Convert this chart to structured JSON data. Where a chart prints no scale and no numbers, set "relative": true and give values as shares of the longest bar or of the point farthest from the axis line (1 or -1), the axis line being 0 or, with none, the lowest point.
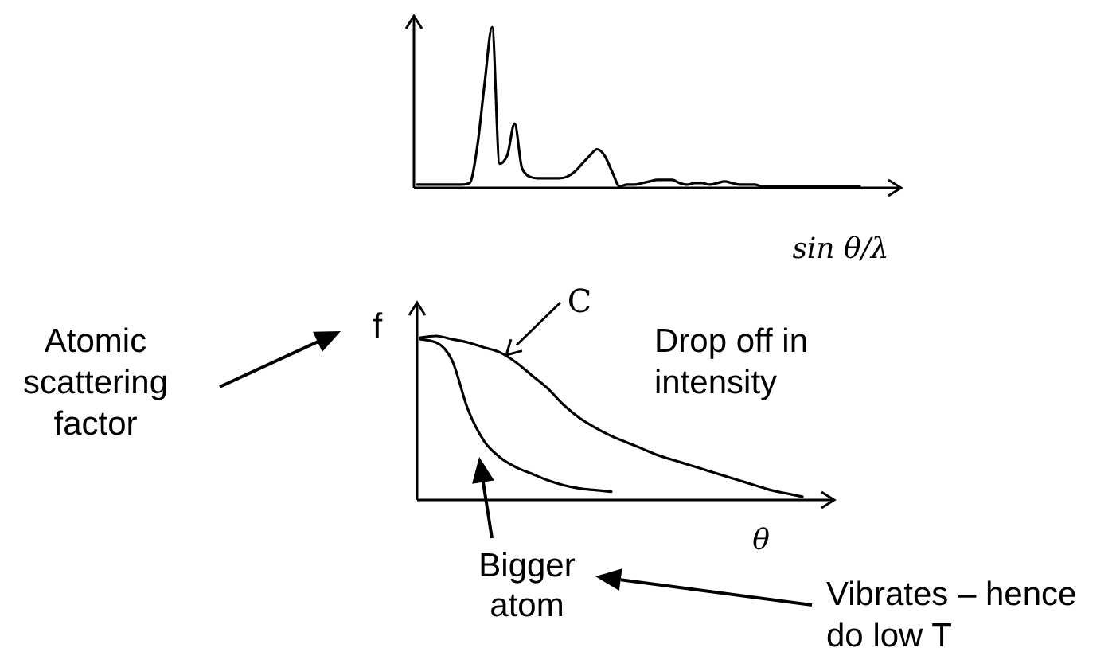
{
  "chart_data": [
    {
      "type": "line",
      "relative": true,
      "xlabel": "sin θ/λ",
      "categories": [
        null,
        null,
        null,
        null,
        null,
        null,
        null,
        null,
        null,
        null,
        null,
        null,
        null,
        null,
        null,
        null,
        null,
        null,
        null,
        null,
        null,
        null,
        null,
        null,
        null,
        null,
        null,
        null,
        null,
        null,
        null,
        null,
        null,
        null,
        null,
        null,
        null,
        null,
        null,
        null,
        null,
        null,
        null,
        null,
        null,
        null,
        null,
        null,
        null,
        null,
        null,
        null,
        null,
        null,
        null,
        null,
        null,
        null,
        null,
        null
      ],
      "series": [
        {
          "color": "#000000",
          "values": [
            0.02,
            0.02,
            0.02,
            0.02,
            0.02,
            0.02,
            0.02,
            0.03,
            0.25,
            0.65,
            1,
            0.15,
            0.2,
            0.4,
            0.12,
            0.07,
            0.06,
            0.06,
            0.06,
            0.06,
            0.07,
            0.1,
            0.15,
            0.2,
            0.24,
            0.2,
            0.1,
            0.01,
            0.02,
            0.02,
            0.03,
            0.04,
            0.05,
            0.05,
            0.05,
            0.03,
            0.02,
            0.03,
            0.03,
            0.02,
            0.03,
            0.04,
            0.03,
            0.02,
            0.02,
            0.02,
            0.01,
            0.01,
            0.01,
            0.01,
            0.01,
            0.01,
            0.01,
            0.01,
            0.01,
            0.01,
            0.01,
            0.01,
            0.01,
            0.01
          ]
        }
      ]
    },
    {
      "type": "line",
      "relative": true,
      "xlabel": "θ",
      "ylabel": "f",
      "categories": [
        null,
        null,
        null,
        null,
        null,
        null,
        null,
        null,
        null,
        null,
        null,
        null,
        null,
        null,
        null,
        null,
        null,
        null,
        null,
        null,
        null,
        null,
        null,
        null,
        null
      ],
      "series": [
        {
          "name": "C",
          "color": "#000000",
          "values": [
            0.99,
            1.0,
            0.98,
            0.96,
            0.93,
            0.9,
            0.84,
            0.76,
            0.68,
            0.58,
            0.5,
            0.44,
            0.39,
            0.35,
            0.31,
            0.27,
            0.24,
            0.21,
            0.18,
            0.15,
            0.12,
            0.09,
            0.06,
            0.04,
            0.02
          ]
        },
        {
          "name": "Bigger atom",
          "color": "#000000",
          "values": [
            0.98,
            0.96,
            0.85,
            0.55,
            0.36,
            0.26,
            0.2,
            0.16,
            0.12,
            0.09,
            0.07,
            0.06,
            0.05,
            null,
            null,
            null,
            null,
            null,
            null,
            null,
            null,
            null,
            null,
            null,
            null
          ]
        }
      ],
      "annotations": [
        "Atomic scattering factor",
        "Drop off in intensity",
        "Vibrates – hence do low T"
      ]
    }
  ]
}
